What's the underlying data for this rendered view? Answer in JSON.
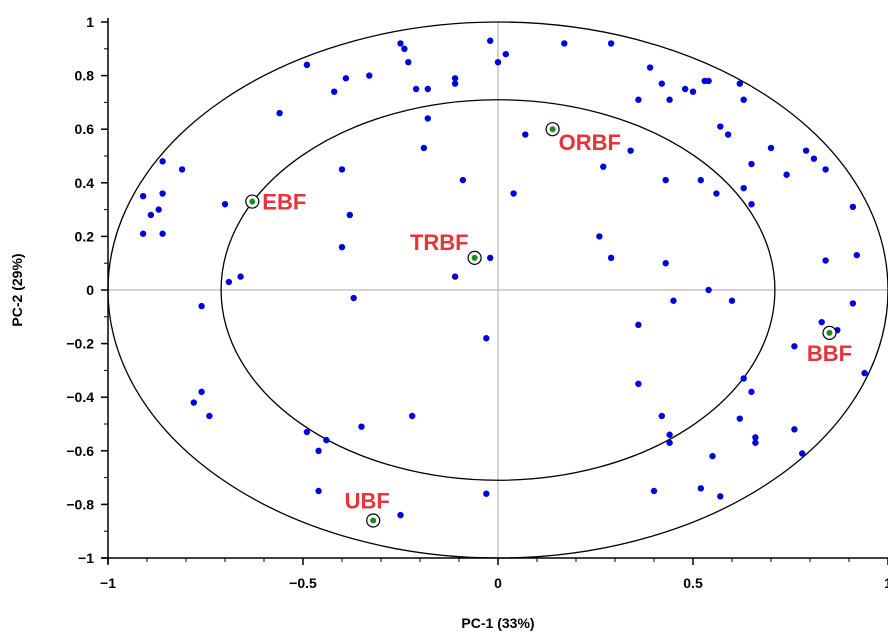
{
  "chart_data": {
    "type": "scatter",
    "title": "",
    "xlabel": "PC-1 (33%)",
    "ylabel": "PC-2 (29%)",
    "xlim": [
      -1,
      1
    ],
    "ylim": [
      -1,
      1
    ],
    "xticks": [
      "−1",
      "−0.5",
      "0",
      "0.5",
      "1"
    ],
    "xtick_values": [
      -1,
      -0.5,
      0,
      0.5,
      1
    ],
    "yticks": [
      "1",
      "0.8",
      "0.6",
      "0.4",
      "0.2",
      "0",
      "−0.2",
      "−0.4",
      "−0.6",
      "−0.8",
      "−1"
    ],
    "ytick_values": [
      1,
      0.8,
      0.6,
      0.4,
      0.2,
      0,
      -0.2,
      -0.4,
      -0.6,
      -0.8,
      -1
    ],
    "grid": false,
    "ellipses": [
      {
        "name": "outer",
        "rx": 1.0,
        "ry": 1.0
      },
      {
        "name": "inner",
        "rx": 0.71,
        "ry": 0.71
      }
    ],
    "colors": {
      "points": "#0000dd",
      "highlight_fill": "#1a8a1a",
      "labels": "#e8333a",
      "axes": "#000000",
      "zero_lines": "#aaaaaa"
    },
    "points": [
      {
        "x": -0.91,
        "y": 0.35
      },
      {
        "x": -0.91,
        "y": 0.21
      },
      {
        "x": -0.89,
        "y": 0.28
      },
      {
        "x": -0.87,
        "y": 0.3
      },
      {
        "x": -0.86,
        "y": 0.48
      },
      {
        "x": -0.86,
        "y": 0.36
      },
      {
        "x": -0.86,
        "y": 0.21
      },
      {
        "x": -0.81,
        "y": 0.45
      },
      {
        "x": -0.76,
        "y": -0.06
      },
      {
        "x": -0.78,
        "y": -0.42
      },
      {
        "x": -0.76,
        "y": -0.38
      },
      {
        "x": -0.74,
        "y": -0.47
      },
      {
        "x": -0.7,
        "y": 0.32
      },
      {
        "x": -0.69,
        "y": 0.03
      },
      {
        "x": -0.66,
        "y": 0.05
      },
      {
        "x": -0.62,
        "y": 0.33
      },
      {
        "x": -0.56,
        "y": 0.66
      },
      {
        "x": -0.49,
        "y": 0.84
      },
      {
        "x": -0.49,
        "y": -0.53
      },
      {
        "x": -0.46,
        "y": -0.6
      },
      {
        "x": -0.44,
        "y": -0.56
      },
      {
        "x": -0.46,
        "y": -0.75
      },
      {
        "x": -0.42,
        "y": 0.74
      },
      {
        "x": -0.4,
        "y": 0.45
      },
      {
        "x": -0.39,
        "y": 0.79
      },
      {
        "x": -0.4,
        "y": 0.16
      },
      {
        "x": -0.38,
        "y": 0.28
      },
      {
        "x": -0.37,
        "y": -0.03
      },
      {
        "x": -0.35,
        "y": -0.51
      },
      {
        "x": -0.33,
        "y": 0.8
      },
      {
        "x": -0.25,
        "y": 0.92
      },
      {
        "x": -0.24,
        "y": 0.9
      },
      {
        "x": -0.23,
        "y": 0.85
      },
      {
        "x": -0.22,
        "y": -0.47
      },
      {
        "x": -0.21,
        "y": 0.75
      },
      {
        "x": -0.19,
        "y": 0.53
      },
      {
        "x": -0.18,
        "y": 0.75
      },
      {
        "x": -0.18,
        "y": 0.64
      },
      {
        "x": -0.11,
        "y": 0.79
      },
      {
        "x": -0.11,
        "y": 0.77
      },
      {
        "x": -0.09,
        "y": 0.41
      },
      {
        "x": -0.11,
        "y": 0.05
      },
      {
        "x": -0.03,
        "y": -0.18
      },
      {
        "x": -0.02,
        "y": 0.12
      },
      {
        "x": -0.02,
        "y": 0.93
      },
      {
        "x": 0.0,
        "y": 0.85
      },
      {
        "x": 0.02,
        "y": 0.88
      },
      {
        "x": 0.04,
        "y": 0.36
      },
      {
        "x": 0.07,
        "y": 0.58
      },
      {
        "x": -0.03,
        "y": -0.76
      },
      {
        "x": -0.25,
        "y": -0.84
      },
      {
        "x": 0.17,
        "y": 0.92
      },
      {
        "x": 0.26,
        "y": 0.2
      },
      {
        "x": 0.27,
        "y": 0.46
      },
      {
        "x": 0.29,
        "y": 0.92
      },
      {
        "x": 0.29,
        "y": 0.12
      },
      {
        "x": 0.34,
        "y": 0.52
      },
      {
        "x": 0.36,
        "y": 0.71
      },
      {
        "x": 0.36,
        "y": -0.35
      },
      {
        "x": 0.36,
        "y": -0.13
      },
      {
        "x": 0.39,
        "y": 0.83
      },
      {
        "x": 0.4,
        "y": -0.75
      },
      {
        "x": 0.42,
        "y": 0.77
      },
      {
        "x": 0.42,
        "y": -0.47
      },
      {
        "x": 0.43,
        "y": 0.1
      },
      {
        "x": 0.43,
        "y": 0.41
      },
      {
        "x": 0.44,
        "y": 0.71
      },
      {
        "x": 0.44,
        "y": -0.54
      },
      {
        "x": 0.44,
        "y": -0.57
      },
      {
        "x": 0.45,
        "y": -0.04
      },
      {
        "x": 0.48,
        "y": 0.75
      },
      {
        "x": 0.5,
        "y": 0.74
      },
      {
        "x": 0.52,
        "y": 0.41
      },
      {
        "x": 0.52,
        "y": -0.74
      },
      {
        "x": 0.53,
        "y": 0.78
      },
      {
        "x": 0.54,
        "y": 0.78
      },
      {
        "x": 0.54,
        "y": 0.0
      },
      {
        "x": 0.55,
        "y": -0.62
      },
      {
        "x": 0.56,
        "y": 0.36
      },
      {
        "x": 0.57,
        "y": -0.77
      },
      {
        "x": 0.57,
        "y": 0.61
      },
      {
        "x": 0.59,
        "y": 0.58
      },
      {
        "x": 0.6,
        "y": -0.04
      },
      {
        "x": 0.62,
        "y": 0.77
      },
      {
        "x": 0.62,
        "y": -0.48
      },
      {
        "x": 0.63,
        "y": 0.71
      },
      {
        "x": 0.63,
        "y": 0.38
      },
      {
        "x": 0.63,
        "y": -0.33
      },
      {
        "x": 0.65,
        "y": 0.47
      },
      {
        "x": 0.65,
        "y": 0.32
      },
      {
        "x": 0.65,
        "y": -0.38
      },
      {
        "x": 0.66,
        "y": -0.55
      },
      {
        "x": 0.66,
        "y": -0.57
      },
      {
        "x": 0.7,
        "y": 0.53
      },
      {
        "x": 0.74,
        "y": 0.43
      },
      {
        "x": 0.76,
        "y": -0.21
      },
      {
        "x": 0.76,
        "y": -0.52
      },
      {
        "x": 0.79,
        "y": 0.52
      },
      {
        "x": 0.78,
        "y": -0.61
      },
      {
        "x": 0.81,
        "y": 0.49
      },
      {
        "x": 0.83,
        "y": -0.12
      },
      {
        "x": 0.84,
        "y": 0.11
      },
      {
        "x": 0.84,
        "y": 0.45
      },
      {
        "x": 0.87,
        "y": -0.15
      },
      {
        "x": 0.91,
        "y": 0.31
      },
      {
        "x": 0.91,
        "y": -0.05
      },
      {
        "x": 0.92,
        "y": 0.13
      },
      {
        "x": 0.94,
        "y": -0.31
      }
    ],
    "highlighted": [
      {
        "name": "EBF",
        "x": -0.63,
        "y": 0.33,
        "label_pos": "right"
      },
      {
        "name": "TRBF",
        "x": -0.06,
        "y": 0.12,
        "label_pos": "upper-left"
      },
      {
        "name": "ORBF",
        "x": 0.14,
        "y": 0.6,
        "label_pos": "lower-right"
      },
      {
        "name": "BBF",
        "x": 0.85,
        "y": -0.16,
        "label_pos": "below"
      },
      {
        "name": "UBF",
        "x": -0.32,
        "y": -0.86,
        "label_pos": "above"
      }
    ]
  }
}
